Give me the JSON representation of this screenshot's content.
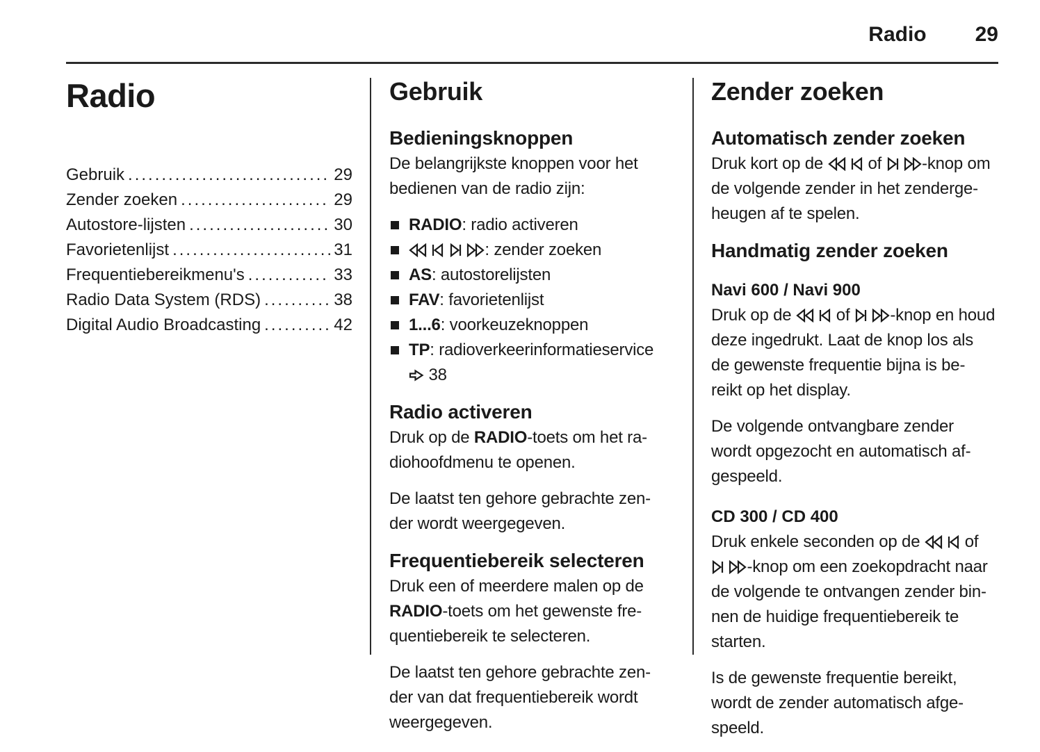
{
  "colors": {
    "text": "#1a1a1a",
    "rule": "#2b2b2b",
    "background": "#ffffff"
  },
  "icons": {
    "seek-rewind-icon": "double open left triangles (fast seek back)",
    "seek-prev-icon": "bar + open left triangle (previous station)",
    "seek-next-icon": "open right triangle + bar (next station)",
    "seek-forward-icon": "double open right triangles (fast seek forward)",
    "ref-arrow-icon": "open right arrow (cross reference)",
    "bullet-icon": "small black square"
  },
  "header": {
    "chapter": "Radio",
    "page": "29"
  },
  "left_column": {
    "title": "Radio",
    "toc": [
      {
        "label": "Gebruik",
        "page": "29"
      },
      {
        "label": "Zender zoeken",
        "page": "29"
      },
      {
        "label": "Autostore-lijsten",
        "page": "30"
      },
      {
        "label": "Favorietenlijst",
        "page": "31"
      },
      {
        "label": "Frequentiebereikmenu's",
        "page": "33"
      },
      {
        "label": "Radio Data System (RDS)",
        "page": "38"
      },
      {
        "label": "Digital Audio Broadcasting",
        "page": "42"
      }
    ]
  },
  "middle_column": {
    "section_title": "Gebruik",
    "sub1_title": "Bedieningsknoppen",
    "sub1_intro": "De belangrijkste knoppen voor het\nbedienen van de radio zijn:",
    "buttons": [
      {
        "segments": [
          {
            "b": "RADIO"
          },
          {
            "t": ": radio activeren"
          }
        ]
      },
      {
        "segments": [
          {
            "icon": "seek-rewind-icon"
          },
          {
            "t": " "
          },
          {
            "icon": "seek-prev-icon"
          },
          {
            "t": " "
          },
          {
            "icon": "seek-next-icon"
          },
          {
            "t": " "
          },
          {
            "icon": "seek-forward-icon"
          },
          {
            "t": ": zender zoeken"
          }
        ]
      },
      {
        "segments": [
          {
            "b": "AS"
          },
          {
            "t": ": autostorelijsten"
          }
        ]
      },
      {
        "segments": [
          {
            "b": "FAV"
          },
          {
            "t": ": favorietenlijst"
          }
        ]
      },
      {
        "segments": [
          {
            "b": "1...6"
          },
          {
            "t": ": voorkeuzeknoppen"
          }
        ]
      },
      {
        "segments": [
          {
            "b": "TP"
          },
          {
            "t": ": radioverkeerinformatieservice\n"
          },
          {
            "icon": "ref-arrow-icon"
          },
          {
            "t": " 38"
          }
        ]
      }
    ],
    "sub2_title": "Radio activeren",
    "sub2_p1": [
      {
        "t": "Druk op de "
      },
      {
        "b": "RADIO"
      },
      {
        "t": "-toets om het ra-\ndiohoofdmenu te openen."
      }
    ],
    "sub2_p2": "De laatst ten gehore gebrachte zen-\nder wordt weergegeven.",
    "sub3_title": "Frequentiebereik selecteren",
    "sub3_p1": [
      {
        "t": "Druk een of meerdere malen op de\n"
      },
      {
        "b": "RADIO"
      },
      {
        "t": "-toets om het gewenste fre-\nquentiebereik te selecteren."
      }
    ],
    "sub3_p2": "De laatst ten gehore gebrachte zen-\nder van dat frequentiebereik wordt\nweergegeven."
  },
  "right_column": {
    "section_title": "Zender zoeken",
    "auto_title": "Automatisch zender zoeken",
    "auto_p1": [
      {
        "t": "Druk kort op de "
      },
      {
        "icon": "seek-rewind-icon"
      },
      {
        "t": " "
      },
      {
        "icon": "seek-prev-icon"
      },
      {
        "t": " of "
      },
      {
        "icon": "seek-next-icon"
      },
      {
        "t": " "
      },
      {
        "icon": "seek-forward-icon"
      },
      {
        "t": "-knop om\nde volgende zender in het zenderge-\nheugen af te spelen."
      }
    ],
    "manual_title": "Handmatig zender zoeken",
    "navi_title": "Navi 600 / Navi 900",
    "navi_p1": [
      {
        "t": "Druk op de "
      },
      {
        "icon": "seek-rewind-icon"
      },
      {
        "t": " "
      },
      {
        "icon": "seek-prev-icon"
      },
      {
        "t": " of "
      },
      {
        "icon": "seek-next-icon"
      },
      {
        "t": " "
      },
      {
        "icon": "seek-forward-icon"
      },
      {
        "t": "-knop en houd\ndeze ingedrukt. Laat de knop los als\nde gewenste frequentie bijna is be-\nreikt op het display."
      }
    ],
    "navi_p2": "De volgende ontvangbare zender\nwordt opgezocht en automatisch af-\ngespeeld.",
    "cd_title": "CD 300 / CD 400",
    "cd_p1": [
      {
        "t": "Druk enkele seconden op de "
      },
      {
        "icon": "seek-rewind-icon"
      },
      {
        "t": " "
      },
      {
        "icon": "seek-prev-icon"
      },
      {
        "t": " of\n"
      },
      {
        "icon": "seek-next-icon"
      },
      {
        "t": " "
      },
      {
        "icon": "seek-forward-icon"
      },
      {
        "t": "-knop om een zoekopdracht naar\nde volgende te ontvangen zender bin-\nnen de huidige frequentiebereik te\nstarten."
      }
    ],
    "cd_p2": "Is de gewenste frequentie bereikt,\nwordt de zender automatisch afge-\nspeeld."
  }
}
